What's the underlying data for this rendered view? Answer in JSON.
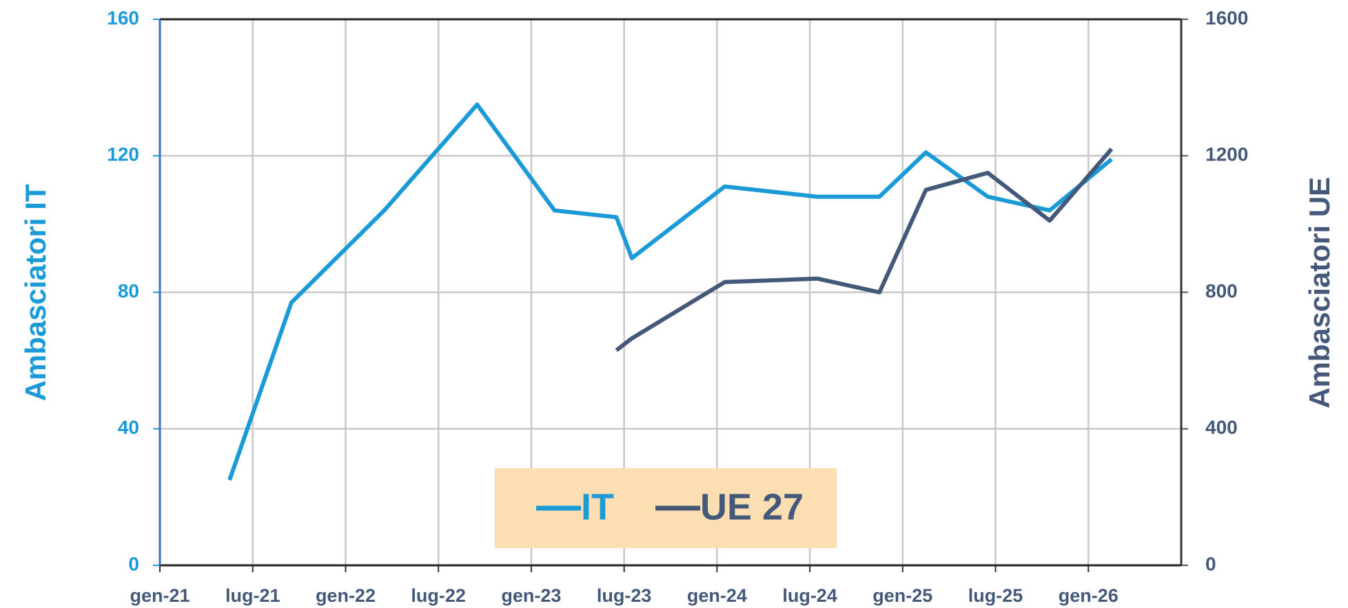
{
  "chart_data": {
    "type": "line",
    "x": [
      "2021-05",
      "2021-09",
      "2022-03",
      "2022-09",
      "2023-02",
      "2023-06",
      "2023-07",
      "2024-01",
      "2024-07",
      "2024-11",
      "2025-02",
      "2025-06",
      "2025-10",
      "2026-02"
    ],
    "series": [
      {
        "name": "IT",
        "color": "#1a9ad6",
        "values": [
          25,
          77,
          104,
          135,
          104,
          102,
          90,
          111,
          108,
          108,
          121,
          108,
          104,
          119
        ]
      },
      {
        "name": "UE 27",
        "color": "#44597a",
        "axis": "y2",
        "values": [
          null,
          null,
          null,
          null,
          null,
          630,
          665,
          830,
          840,
          800,
          1100,
          1150,
          1010,
          1220
        ]
      }
    ],
    "ylabel": "Ambasciatori IT",
    "y2label": "Ambasciatori UE",
    "xlim": [
      "2021-01",
      "2026-07"
    ],
    "xticks": [
      {
        "value": "2021-01",
        "label": "gen-21"
      },
      {
        "value": "2021-07",
        "label": "lug-21"
      },
      {
        "value": "2022-01",
        "label": "gen-22"
      },
      {
        "value": "2022-07",
        "label": "lug-22"
      },
      {
        "value": "2023-01",
        "label": "gen-23"
      },
      {
        "value": "2023-07",
        "label": "lug-23"
      },
      {
        "value": "2024-01",
        "label": "gen-24"
      },
      {
        "value": "2024-07",
        "label": "lug-24"
      },
      {
        "value": "2025-01",
        "label": "gen-25"
      },
      {
        "value": "2025-07",
        "label": "lug-25"
      },
      {
        "value": "2026-01",
        "label": "gen-26"
      }
    ],
    "ylim": [
      0,
      160
    ],
    "yticks": [
      0,
      40,
      80,
      120,
      160
    ],
    "y2lim": [
      0,
      1600
    ],
    "y2ticks": [
      0,
      400,
      800,
      1200,
      1600
    ],
    "grid": true,
    "legend": "bottom"
  }
}
